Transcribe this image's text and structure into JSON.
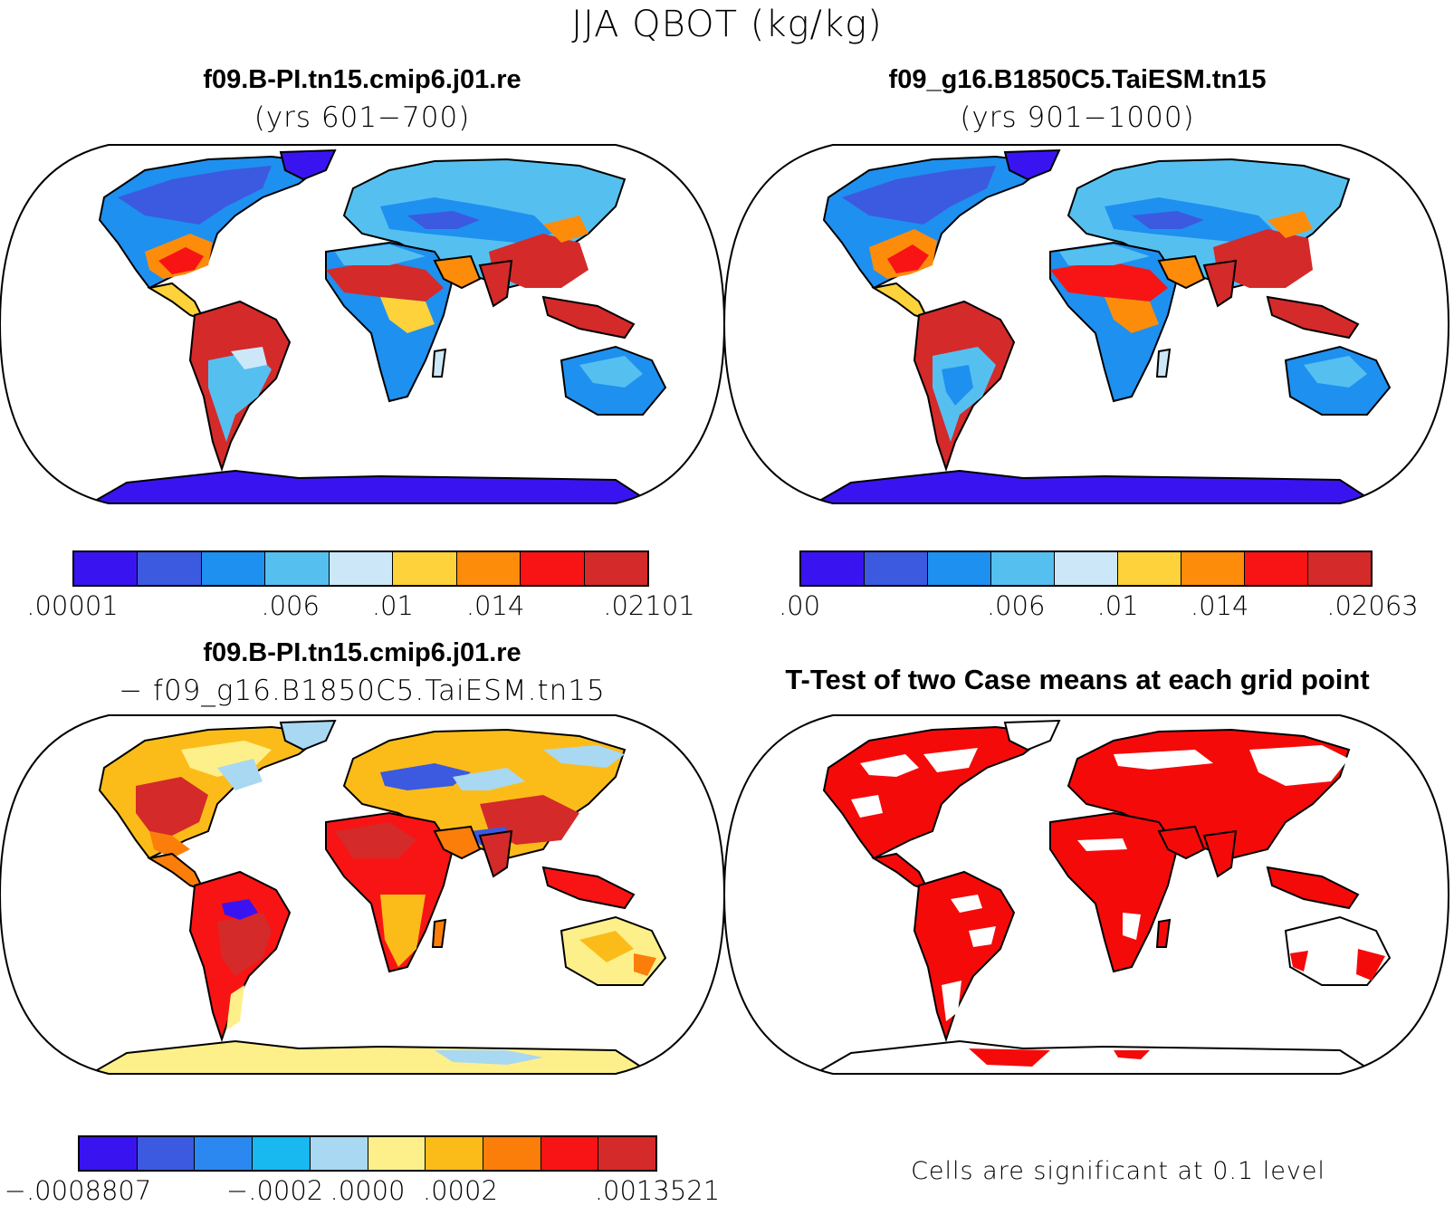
{
  "title": "JJA QBOT (kg/kg)",
  "panels": {
    "p1": {
      "title": "f09.B-PI.tn15.cmip6.j01.re",
      "subtitle": "(yrs 601−700)"
    },
    "p2": {
      "title": "f09_g16.B1850C5.TaiESM.tn15",
      "subtitle": "(yrs 901−1000)"
    },
    "p3": {
      "title": "f09.B-PI.tn15.cmip6.j01.re",
      "subtitle": "− f09_g16.B1850C5.TaiESM.tn15"
    },
    "p4": {
      "title": "T-Test of two Case means at each grid point",
      "note": "Cells are significant at 0.1 level"
    }
  },
  "colorbars": {
    "cb1": {
      "colors": [
        "#3a14f0",
        "#3b5ae0",
        "#1e90f0",
        "#55c0f0",
        "#cce8f8",
        "#fdd23a",
        "#fd8c0a",
        "#f81414",
        "#d42a2a"
      ],
      "labels": [
        ".00001",
        ".006",
        ".01",
        ".014",
        ".02101"
      ]
    },
    "cb2": {
      "colors": [
        "#3a14f0",
        "#3b5ae0",
        "#1e90f0",
        "#55c0f0",
        "#cce8f8",
        "#fdd23a",
        "#fd8c0a",
        "#f81414",
        "#d42a2a"
      ],
      "labels": [
        ".00",
        ".006",
        ".01",
        ".014",
        ".02063"
      ]
    },
    "cb3": {
      "colors": [
        "#3a14f0",
        "#3b5ae0",
        "#2a88f0",
        "#18b8f0",
        "#a8d8f2",
        "#fdf08a",
        "#fbbc1a",
        "#fb7e0a",
        "#f81414",
        "#d42a2a"
      ],
      "labels": [
        "−.0008807",
        "−.0002",
        ".0000",
        ".0002",
        ".0013521"
      ]
    }
  },
  "map_colors": {
    "ocean": "#ffffff",
    "coast": "#000000",
    "significant": "#f50a0a"
  }
}
